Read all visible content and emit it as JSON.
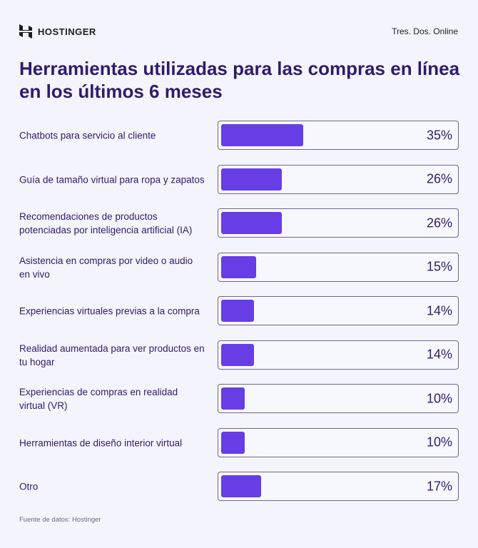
{
  "header": {
    "brand": "HOSTINGER",
    "site": "Tres. Dos. Online"
  },
  "colors": {
    "bar": "#673de6",
    "text": "#2f1c6a",
    "background": "#f4f4fd"
  },
  "chart_data": {
    "type": "bar",
    "orientation": "horizontal",
    "title": "Herramientas utilizadas para las compras en línea en los últimos 6 meses",
    "categories": [
      "Chatbots para servicio al cliente",
      "Guía de tamaño virtual para ropa y zapatos",
      "Recomendaciones de productos potenciadas por inteligencia artificial (IA)",
      "Asistencia en compras por video o audio en vivo",
      "Experiencias virtuales previas a la compra",
      "Realidad aumentada para ver productos en tu hogar",
      "Experiencias de compras en realidad virtual (VR)",
      "Herramientas de diseño interior virtual",
      "Otro"
    ],
    "values": [
      35,
      26,
      26,
      15,
      14,
      14,
      10,
      10,
      17
    ],
    "value_labels": [
      "35%",
      "26%",
      "26%",
      "15%",
      "14%",
      "14%",
      "10%",
      "10%",
      "17%"
    ],
    "unit": "%",
    "xlim": [
      0,
      100
    ]
  },
  "footer": {
    "source": "Fuente de datos: Hostinger"
  }
}
